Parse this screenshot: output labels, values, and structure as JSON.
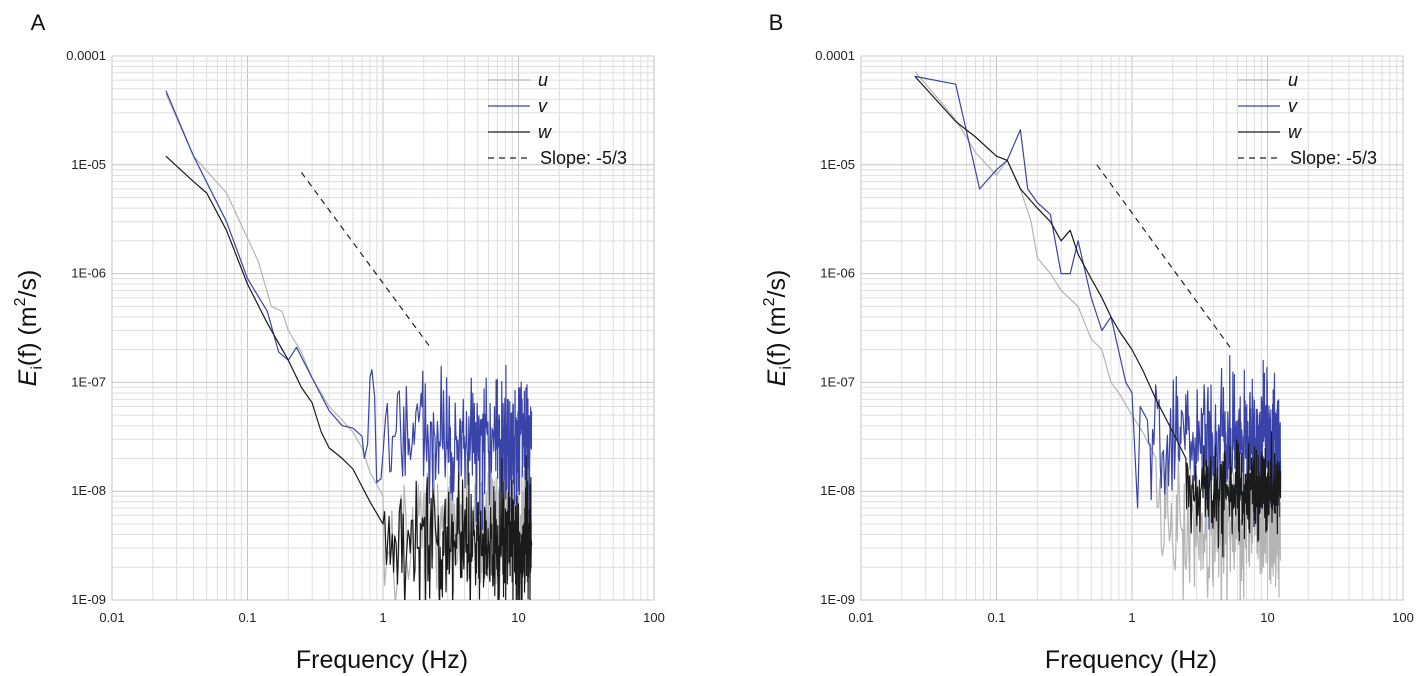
{
  "chart_data": [
    {
      "panel_label": "A",
      "type": "line",
      "xscale": "log",
      "yscale": "log",
      "xlim": [
        0.01,
        100
      ],
      "ylim": [
        1e-09,
        0.0001
      ],
      "xticks": [
        "0.01",
        "0.1",
        "1",
        "10",
        "100"
      ],
      "yticks": [
        "1E-09",
        "1E-08",
        "1E-07",
        "1E-06",
        "1E-05",
        "0.0001"
      ],
      "xlabel": "Frequency  (Hz)",
      "ylabel": {
        "main": "E",
        "sub": "i",
        "arg": "(f)",
        "unit_open": " (m",
        "sup": "2",
        "unit_close": "/s)"
      },
      "grid": "major and minor",
      "legend_position": "top-right",
      "legend": [
        "u",
        "v",
        "w",
        "Slope: -5/3"
      ],
      "series": [
        {
          "name": "u",
          "color": "#b4b4b4",
          "noise_from_x": 1.0,
          "noise_level": 4.5e-09,
          "noise_spread": 0.28,
          "points": [
            [
              0.025,
              4.5e-05
            ],
            [
              0.04,
              1.2e-05
            ],
            [
              0.07,
              5.5e-06
            ],
            [
              0.12,
              1.3e-06
            ],
            [
              0.15,
              5e-07
            ],
            [
              0.18,
              4.5e-07
            ],
            [
              0.2,
              3e-07
            ],
            [
              0.25,
              1.9e-07
            ],
            [
              0.3,
              1.1e-07
            ],
            [
              0.4,
              6e-08
            ],
            [
              0.5,
              4.5e-08
            ],
            [
              0.6,
              3.5e-08
            ],
            [
              0.7,
              2.5e-08
            ],
            [
              0.8,
              1.5e-08
            ],
            [
              1.0,
              9e-09
            ]
          ]
        },
        {
          "name": "v",
          "color": "#3a44a8",
          "noise_from_x": 0.7,
          "noise_level": 2.8e-08,
          "noise_spread": 0.3,
          "points": [
            [
              0.025,
              4.8e-05
            ],
            [
              0.04,
              1.2e-05
            ],
            [
              0.07,
              3e-06
            ],
            [
              0.1,
              9e-07
            ],
            [
              0.14,
              4.5e-07
            ],
            [
              0.17,
              1.9e-07
            ],
            [
              0.2,
              1.6e-07
            ],
            [
              0.23,
              2.1e-07
            ],
            [
              0.3,
              1.1e-07
            ],
            [
              0.4,
              5.5e-08
            ],
            [
              0.5,
              4e-08
            ],
            [
              0.6,
              3.8e-08
            ],
            [
              0.7,
              3.2e-08
            ]
          ]
        },
        {
          "name": "w",
          "color": "#1a1a1a",
          "noise_from_x": 1.0,
          "noise_level": 3.5e-09,
          "noise_spread": 0.3,
          "points": [
            [
              0.025,
              1.2e-05
            ],
            [
              0.04,
              7e-06
            ],
            [
              0.05,
              5.5e-06
            ],
            [
              0.07,
              2.5e-06
            ],
            [
              0.1,
              8e-07
            ],
            [
              0.14,
              3.5e-07
            ],
            [
              0.2,
              1.6e-07
            ],
            [
              0.25,
              9e-08
            ],
            [
              0.3,
              6.5e-08
            ],
            [
              0.35,
              3.5e-08
            ],
            [
              0.4,
              2.5e-08
            ],
            [
              0.5,
              2e-08
            ],
            [
              0.6,
              1.6e-08
            ],
            [
              0.8,
              8e-09
            ],
            [
              1.0,
              5e-09
            ]
          ]
        }
      ],
      "slope_line": {
        "x": [
          0.25,
          2.3
        ],
        "y": [
          8.5e-06,
          2e-07
        ],
        "style": "dashed"
      }
    },
    {
      "panel_label": "B",
      "type": "line",
      "xscale": "log",
      "yscale": "log",
      "xlim": [
        0.01,
        100
      ],
      "ylim": [
        1e-09,
        0.0001
      ],
      "xticks": [
        "0.01",
        "0.1",
        "1",
        "10",
        "100"
      ],
      "yticks": [
        "1E-09",
        "1E-08",
        "1E-07",
        "1E-06",
        "1E-05",
        "0.0001"
      ],
      "xlabel": "Frequency  (Hz)",
      "ylabel": {
        "main": "E",
        "sub": "i",
        "arg": "(f)",
        "unit_open": " (m",
        "sup": "2",
        "unit_close": "/s)"
      },
      "grid": "major and minor",
      "legend_position": "top-right",
      "legend": [
        "u",
        "v",
        "w",
        "Slope: -5/3"
      ],
      "series": [
        {
          "name": "u",
          "color": "#b4b4b4",
          "noise_from_x": 1.5,
          "noise_level": 5e-09,
          "noise_spread": 0.3,
          "points": [
            [
              0.025,
              7.2e-05
            ],
            [
              0.05,
              2.6e-05
            ],
            [
              0.07,
              1.3e-05
            ],
            [
              0.1,
              8e-06
            ],
            [
              0.12,
              1.1e-05
            ],
            [
              0.15,
              6e-06
            ],
            [
              0.18,
              3e-06
            ],
            [
              0.2,
              1.4e-06
            ],
            [
              0.25,
              1e-06
            ],
            [
              0.3,
              7e-07
            ],
            [
              0.4,
              5e-07
            ],
            [
              0.5,
              2.5e-07
            ],
            [
              0.6,
              2e-07
            ],
            [
              0.7,
              1e-07
            ],
            [
              0.8,
              8e-08
            ],
            [
              1.0,
              5e-08
            ],
            [
              1.2,
              3.5e-08
            ],
            [
              1.5,
              2e-08
            ]
          ]
        },
        {
          "name": "v",
          "color": "#3a44a8",
          "noise_from_x": 1.3,
          "noise_level": 3e-08,
          "noise_spread": 0.3,
          "points": [
            [
              0.025,
              6.5e-05
            ],
            [
              0.05,
              5.5e-05
            ],
            [
              0.075,
              6e-06
            ],
            [
              0.1,
              9e-06
            ],
            [
              0.12,
              1.1e-05
            ],
            [
              0.15,
              2.1e-05
            ],
            [
              0.17,
              6e-06
            ],
            [
              0.2,
              4.5e-06
            ],
            [
              0.25,
              3.5e-06
            ],
            [
              0.3,
              1e-06
            ],
            [
              0.35,
              1e-06
            ],
            [
              0.4,
              2e-06
            ],
            [
              0.5,
              6e-07
            ],
            [
              0.6,
              3e-07
            ],
            [
              0.7,
              4e-07
            ],
            [
              0.9,
              1e-07
            ],
            [
              1.0,
              8e-08
            ],
            [
              1.1,
              7e-09
            ],
            [
              1.15,
              6e-08
            ],
            [
              1.3,
              4.5e-08
            ]
          ]
        },
        {
          "name": "w",
          "color": "#1a1a1a",
          "noise_from_x": 2.5,
          "noise_level": 1e-08,
          "noise_spread": 0.22,
          "points": [
            [
              0.025,
              6.5e-05
            ],
            [
              0.05,
              2.5e-05
            ],
            [
              0.07,
              1.8e-05
            ],
            [
              0.1,
              1.2e-05
            ],
            [
              0.12,
              1.1e-05
            ],
            [
              0.15,
              6e-06
            ],
            [
              0.2,
              4e-06
            ],
            [
              0.25,
              3e-06
            ],
            [
              0.3,
              2e-06
            ],
            [
              0.35,
              2.5e-06
            ],
            [
              0.4,
              1.5e-06
            ],
            [
              0.5,
              9e-07
            ],
            [
              0.6,
              6e-07
            ],
            [
              0.7,
              4e-07
            ],
            [
              0.8,
              3e-07
            ],
            [
              1.0,
              2e-07
            ],
            [
              1.2,
              1.3e-07
            ],
            [
              1.5,
              7e-08
            ],
            [
              2.0,
              3.5e-08
            ],
            [
              2.5,
              2e-08
            ]
          ]
        }
      ],
      "slope_line": {
        "x": [
          0.55,
          5.3
        ],
        "y": [
          1e-05,
          2.1e-07
        ],
        "style": "dashed"
      }
    }
  ]
}
